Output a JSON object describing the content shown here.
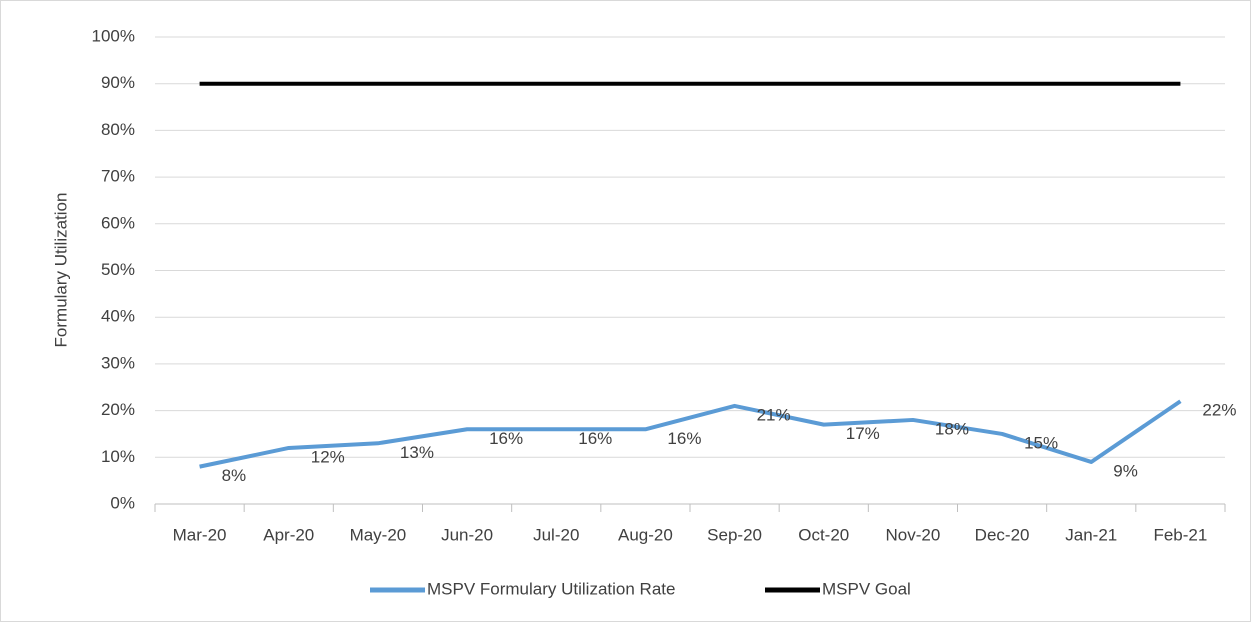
{
  "chart_data": {
    "type": "line",
    "y_axis_label": "Formulary Utilization",
    "categories": [
      "Mar-20",
      "Apr-20",
      "May-20",
      "Jun-20",
      "Jul-20",
      "Aug-20",
      "Sep-20",
      "Oct-20",
      "Nov-20",
      "Dec-20",
      "Jan-21",
      "Feb-21"
    ],
    "series": [
      {
        "name": "MSPV Formulary Utilization Rate",
        "color": "#5b9bd5",
        "values": [
          8,
          12,
          13,
          16,
          16,
          16,
          21,
          17,
          18,
          15,
          9,
          22
        ],
        "value_labels": [
          "8%",
          "12%",
          "13%",
          "16%",
          "16%",
          "16%",
          "21%",
          "17%",
          "18%",
          "15%",
          "9%",
          "22%"
        ]
      },
      {
        "name": "MSPV Goal",
        "color": "#000000",
        "values": [
          90,
          90,
          90,
          90,
          90,
          90,
          90,
          90,
          90,
          90,
          90,
          90
        ]
      }
    ],
    "ylim": [
      0,
      100
    ],
    "yticks": [
      {
        "value": 0,
        "label": "0%"
      },
      {
        "value": 10,
        "label": "10%"
      },
      {
        "value": 20,
        "label": "20%"
      },
      {
        "value": 30,
        "label": "30%"
      },
      {
        "value": 40,
        "label": "40%"
      },
      {
        "value": 50,
        "label": "50%"
      },
      {
        "value": 60,
        "label": "60%"
      },
      {
        "value": 70,
        "label": "70%"
      },
      {
        "value": 80,
        "label": "80%"
      },
      {
        "value": 90,
        "label": "90%"
      },
      {
        "value": 100,
        "label": "100%"
      }
    ],
    "grid": true,
    "legend": "bottom"
  }
}
